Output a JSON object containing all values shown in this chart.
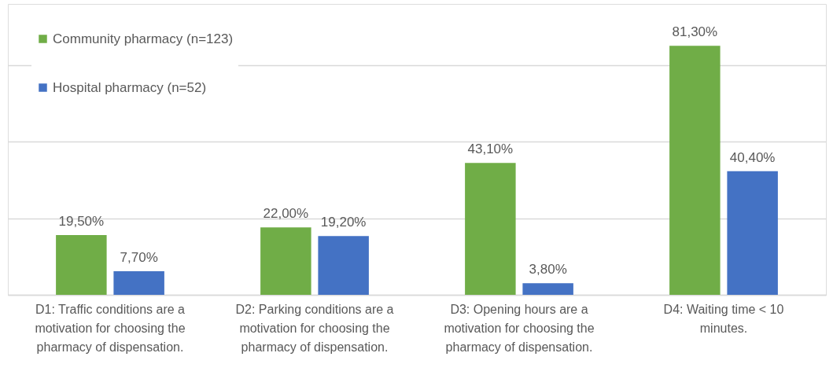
{
  "chart_data": {
    "type": "bar",
    "categories": [
      "D1: Traffic conditions are a motivation for choosing the pharmacy of dispensation.",
      "D2: Parking conditions are a motivation for choosing the pharmacy of dispensation.",
      "D3: Opening hours are a motivation for choosing the pharmacy of dispensation.",
      "D4: Waiting time < 10 minutes."
    ],
    "series": [
      {
        "name": "Community pharmacy (n=123)",
        "color": "#70ad47",
        "values": [
          19.5,
          22.0,
          43.1,
          81.3
        ],
        "value_labels": [
          "19,50%",
          "22,00%",
          "43,10%",
          "81,30%"
        ]
      },
      {
        "name": "Hospital pharmacy (n=52)",
        "color": "#4472c4",
        "values": [
          7.7,
          19.2,
          3.8,
          40.4
        ],
        "value_labels": [
          "7,70%",
          "19,20%",
          "3,80%",
          "40,40%"
        ]
      }
    ],
    "ylim": [
      0,
      95
    ],
    "yticks": [
      {
        "value": 0,
        "label": null
      },
      {
        "value": 25,
        "label": null
      },
      {
        "value": 50,
        "label": null
      },
      {
        "value": 75,
        "label": null
      }
    ],
    "grid": "y",
    "legend": "top left"
  }
}
